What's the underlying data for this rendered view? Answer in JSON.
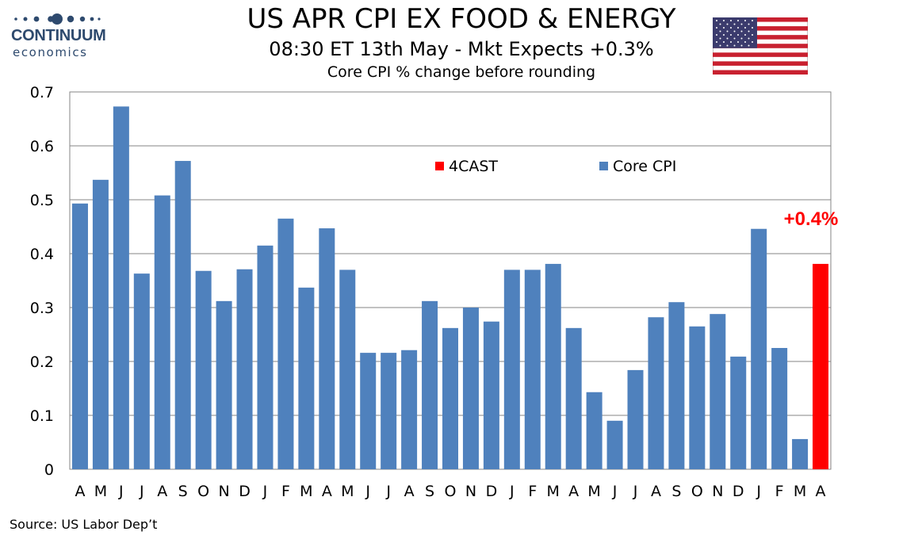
{
  "logo": {
    "brand": "CONTINUUM",
    "sub": "economics"
  },
  "header": {
    "title": "US APR CPI EX FOOD & ENERGY",
    "subtitle": "08:30 ET 13th May - Mkt Expects +0.3%",
    "caption": "Core CPI % change before rounding"
  },
  "source": "Source: US Labor Dep’t",
  "colors": {
    "core": "#4f81bd",
    "forecast": "#ff0000",
    "grid": "#868686"
  },
  "chart_data": {
    "type": "bar",
    "title": "US APR CPI EX FOOD & ENERGY",
    "subtitle": "Core CPI % change before rounding",
    "xlabel": "",
    "ylabel": "",
    "ylim": [
      0,
      0.7
    ],
    "yticks": [
      "0",
      "0.1",
      "0.2",
      "0.3",
      "0.4",
      "0.5",
      "0.6",
      "0.7"
    ],
    "grid": true,
    "legend_position": "top-right",
    "categories": [
      "A",
      "M",
      "J",
      "J",
      "A",
      "S",
      "O",
      "N",
      "D",
      "J",
      "F",
      "M",
      "A",
      "M",
      "J",
      "J",
      "A",
      "S",
      "O",
      "N",
      "D",
      "J",
      "F",
      "M",
      "A",
      "M",
      "J",
      "J",
      "A",
      "S",
      "O",
      "N",
      "D",
      "J",
      "F",
      "M",
      "A"
    ],
    "series": [
      {
        "name": "Core CPI",
        "values": [
          0.493,
          0.537,
          0.673,
          0.363,
          0.508,
          0.572,
          0.368,
          0.312,
          0.371,
          0.415,
          0.465,
          0.337,
          0.447,
          0.37,
          0.216,
          0.216,
          0.221,
          0.312,
          0.262,
          0.3,
          0.274,
          0.37,
          0.37,
          0.381,
          0.262,
          0.143,
          0.09,
          0.184,
          0.282,
          0.31,
          0.265,
          0.288,
          0.209,
          0.446,
          0.225,
          0.056,
          null
        ]
      },
      {
        "name": "4CAST",
        "values": [
          null,
          null,
          null,
          null,
          null,
          null,
          null,
          null,
          null,
          null,
          null,
          null,
          null,
          null,
          null,
          null,
          null,
          null,
          null,
          null,
          null,
          null,
          null,
          null,
          null,
          null,
          null,
          null,
          null,
          null,
          null,
          null,
          null,
          null,
          null,
          null,
          0.381
        ]
      }
    ],
    "annotations": [
      {
        "text": "+0.4%",
        "category_index": 36
      }
    ]
  }
}
